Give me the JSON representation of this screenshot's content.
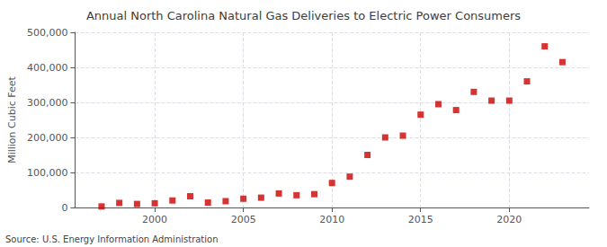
{
  "chart_data": {
    "type": "scatter",
    "title": "Annual North Carolina Natural Gas Deliveries to Electric Power Consumers",
    "ylabel": "Million Cubic Feet",
    "source": "Source: U.S. Energy Information Administration",
    "x": [
      1997,
      1998,
      1999,
      2000,
      2001,
      2002,
      2003,
      2004,
      2005,
      2006,
      2007,
      2008,
      2009,
      2010,
      2011,
      2012,
      2013,
      2014,
      2015,
      2016,
      2017,
      2018,
      2019,
      2020,
      2021,
      2022,
      2023
    ],
    "values": [
      3000,
      13000,
      10000,
      12000,
      20000,
      32000,
      14000,
      18000,
      25000,
      28000,
      40000,
      35000,
      38000,
      70000,
      88000,
      150000,
      200000,
      205000,
      265000,
      295000,
      278000,
      330000,
      305000,
      305000,
      360000,
      460000,
      415000
    ],
    "color": "#cc0000",
    "marker": "square",
    "xlim": [
      1995.5,
      2024.5
    ],
    "xticks": [
      2000,
      2005,
      2010,
      2015,
      2020
    ],
    "ylim": [
      0,
      500000
    ],
    "yticks": [
      0,
      {
        "value": 100000,
        "label": "100,000"
      },
      {
        "value": 200000,
        "label": "200,000"
      },
      {
        "value": 300000,
        "label": "300,000"
      },
      {
        "value": 400000,
        "label": "400,000"
      },
      {
        "value": 500000,
        "label": "500,000"
      }
    ],
    "grid": true
  }
}
